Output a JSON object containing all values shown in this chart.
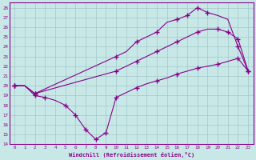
{
  "xlabel": "Windchill (Refroidissement éolien,°C)",
  "background_color": "#c8e8e8",
  "grid_color": "#a0c8c8",
  "line_color": "#880088",
  "xlim": [
    -0.5,
    23.5
  ],
  "ylim": [
    14,
    28.5
  ],
  "xticks": [
    0,
    1,
    2,
    3,
    4,
    5,
    6,
    7,
    8,
    9,
    10,
    11,
    12,
    13,
    14,
    15,
    16,
    17,
    18,
    19,
    20,
    21,
    22,
    23
  ],
  "yticks": [
    14,
    15,
    16,
    17,
    18,
    19,
    20,
    21,
    22,
    23,
    24,
    25,
    26,
    27,
    28
  ],
  "series": [
    {
      "x": [
        0,
        1,
        2,
        10,
        11,
        12,
        13,
        14,
        15,
        16,
        17,
        18,
        19,
        20,
        21,
        22,
        23
      ],
      "y": [
        20.0,
        20.0,
        19.2,
        23.0,
        23.5,
        24.5,
        25.0,
        25.5,
        26.5,
        26.8,
        27.2,
        28.0,
        27.5,
        27.2,
        26.8,
        24.0,
        21.5
      ]
    },
    {
      "x": [
        0,
        1,
        2,
        10,
        11,
        12,
        13,
        14,
        15,
        16,
        17,
        18,
        19,
        20,
        21,
        22,
        23
      ],
      "y": [
        20.0,
        20.0,
        19.2,
        21.5,
        22.0,
        22.5,
        23.0,
        23.5,
        24.0,
        24.5,
        25.0,
        25.5,
        25.8,
        25.8,
        25.5,
        24.8,
        21.5
      ]
    },
    {
      "x": [
        0,
        1,
        2,
        3,
        4,
        5,
        6,
        7,
        8,
        9,
        10,
        11,
        12,
        13,
        14,
        15,
        16,
        17,
        18,
        19,
        20,
        21,
        22,
        23
      ],
      "y": [
        20.0,
        20.0,
        19.0,
        18.8,
        18.5,
        18.0,
        17.0,
        15.5,
        14.5,
        15.2,
        18.8,
        19.3,
        19.8,
        20.2,
        20.5,
        20.8,
        21.2,
        21.5,
        21.8,
        22.0,
        22.2,
        22.5,
        22.8,
        21.5
      ]
    }
  ],
  "sparse_series": [
    {
      "x": [
        0,
        2,
        10,
        12,
        14,
        16,
        17,
        18,
        19,
        22,
        23
      ],
      "y": [
        20.0,
        19.2,
        23.0,
        24.5,
        25.5,
        26.8,
        27.2,
        28.0,
        27.5,
        24.0,
        21.5
      ]
    },
    {
      "x": [
        0,
        2,
        10,
        12,
        14,
        16,
        18,
        20,
        21,
        22,
        23
      ],
      "y": [
        20.0,
        19.2,
        21.5,
        22.5,
        23.5,
        24.5,
        25.5,
        25.8,
        25.5,
        24.8,
        21.5
      ]
    },
    {
      "x": [
        0,
        2,
        3,
        5,
        6,
        7,
        8,
        9,
        10,
        12,
        14,
        16,
        18,
        20,
        22
      ],
      "y": [
        20.0,
        19.0,
        18.8,
        18.0,
        17.0,
        15.5,
        14.5,
        15.2,
        18.8,
        19.8,
        20.5,
        21.2,
        21.8,
        22.2,
        22.8
      ]
    }
  ]
}
